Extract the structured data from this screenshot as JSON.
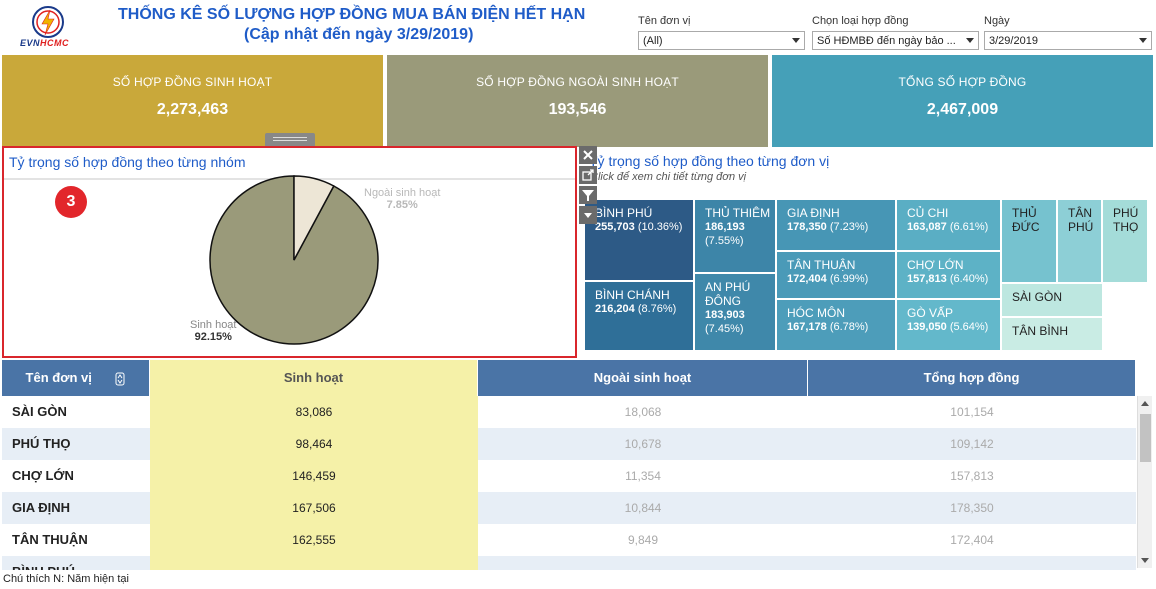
{
  "header": {
    "logo_text_a": "EVN",
    "logo_text_b": "HCMC",
    "title": "THỐNG KÊ SỐ LƯỢNG HỢP ĐỒNG MUA BÁN ĐIỆN HẾT HẠN",
    "subtitle": "(Cập nhật đến ngày 3/29/2019)"
  },
  "filters": {
    "unit_label": "Tên đơn vị",
    "unit_value": "(All)",
    "contract_label": "Chọn loại hợp đồng",
    "contract_value": "Số HĐMBĐ đến ngày bảo ...",
    "date_label": "Ngày",
    "date_value": "3/29/2019"
  },
  "kpis": [
    {
      "label": "SỐ HỢP ĐỒNG SINH HOẠT",
      "value": "2,273,463",
      "color": "#c9a83a"
    },
    {
      "label": "SỐ HỢP ĐỒNG NGOÀI SINH HOẠT",
      "value": "193,546",
      "color": "#9a9a7a"
    },
    {
      "label": "TỔNG SỐ HỢP ĐỒNG",
      "value": "2,467,009",
      "color": "#45a0b8"
    }
  ],
  "pie": {
    "title": "Tỷ trọng số hợp đồng theo từng nhóm",
    "badge": "3",
    "slices": [
      {
        "name": "Sinh hoạt",
        "pct_label": "92.15%",
        "fraction": 0.9215,
        "color": "#9a9a7a"
      },
      {
        "name": "Ngoài sinh hoạt",
        "pct_label": "7.85%",
        "fraction": 0.0785,
        "color": "#ede6d6"
      }
    ]
  },
  "treemap": {
    "title": "Tỷ trọng số hợp đồng theo từng đơn vị",
    "subtitle": "Click để xem chi tiết từng đơn vị",
    "cells": [
      {
        "name": "BÌNH PHÚ",
        "value": "255,703",
        "pct": "(10.36%)",
        "color": "#2d5a86"
      },
      {
        "name": "BÌNH CHÁNH",
        "value": "216,204",
        "pct": "(8.76%)",
        "color": "#2f6f98"
      },
      {
        "name": "THỦ THIÊM",
        "value": "186,193",
        "pct": "(7.55%)",
        "color": "#3d85a8"
      },
      {
        "name": "AN PHÚ ĐÔNG",
        "value": "183,903",
        "pct": "(7.45%)",
        "color": "#3f88aa"
      },
      {
        "name": "GIA ĐỊNH",
        "value": "178,350",
        "pct": "(7.23%)",
        "color": "#4796b5"
      },
      {
        "name": "TÂN THUẬN",
        "value": "172,404",
        "pct": "(6.99%)",
        "color": "#4a9ab8"
      },
      {
        "name": "HÓC MÔN",
        "value": "167,178",
        "pct": "(6.78%)",
        "color": "#4d9dba"
      },
      {
        "name": "CỦ CHI",
        "value": "163,087",
        "pct": "(6.61%)",
        "color": "#5aaec4"
      },
      {
        "name": "CHỢ LỚN",
        "value": "157,813",
        "pct": "(6.40%)",
        "color": "#5db2c6"
      },
      {
        "name": "GÒ VẤP",
        "value": "139,050",
        "pct": "(5.64%)",
        "color": "#63b8cb"
      },
      {
        "name": "THỦ ĐỨC",
        "color": "#76c2cf"
      },
      {
        "name": "TÂN PHÚ",
        "color": "#8dcfd6"
      },
      {
        "name": "PHÚ THỌ",
        "color": "#a4dcd9"
      },
      {
        "name": "SÀI GÒN",
        "color": "#bde7e0"
      },
      {
        "name": "TÂN BÌNH",
        "color": "#c9ece4"
      }
    ]
  },
  "table": {
    "headers": [
      "Tên đơn vị",
      "Sinh hoạt",
      "Ngoài sinh hoạt",
      "Tổng hợp đồng"
    ],
    "sort_icon": "sort-icon",
    "rows": [
      {
        "name": "SÀI GÒN",
        "sinh": "83,086",
        "ngoai": "18,068",
        "tong": "101,154"
      },
      {
        "name": "PHÚ THỌ",
        "sinh": "98,464",
        "ngoai": "10,678",
        "tong": "109,142"
      },
      {
        "name": "CHỢ LỚN",
        "sinh": "146,459",
        "ngoai": "11,354",
        "tong": "157,813"
      },
      {
        "name": "GIA ĐỊNH",
        "sinh": "167,506",
        "ngoai": "10,844",
        "tong": "178,350"
      },
      {
        "name": "TÂN THUẬN",
        "sinh": "162,555",
        "ngoai": "9,849",
        "tong": "172,404"
      },
      {
        "name": "BÌNH PHÚ",
        "sinh": "",
        "ngoai": "",
        "tong": ""
      }
    ]
  },
  "footer": {
    "legend": "Chú thích  N: Năm hiện tại"
  }
}
